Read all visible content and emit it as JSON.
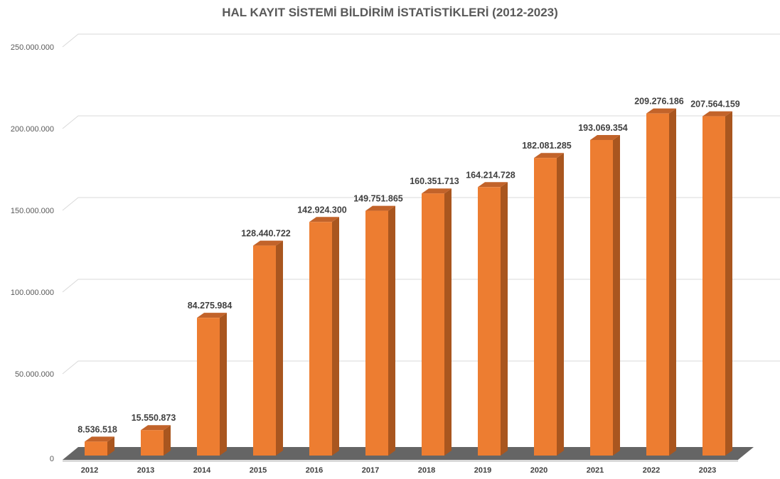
{
  "chart_data": {
    "type": "bar",
    "title": "HAL KAYIT SİSTEMİ BİLDİRİM İSTATİSTİKLERİ (2012-2023)",
    "xlabel": "",
    "ylabel": "",
    "ylim": [
      0,
      250000000
    ],
    "y_ticks": [
      0,
      50000000,
      100000000,
      150000000,
      200000000,
      250000000
    ],
    "y_tick_labels": [
      "0",
      "50.000.000",
      "100.000.000",
      "150.000.000",
      "200.000.000",
      "250.000.000"
    ],
    "categories": [
      "2012",
      "2013",
      "2014",
      "2015",
      "2016",
      "2017",
      "2018",
      "2019",
      "2020",
      "2021",
      "2022",
      "2023"
    ],
    "values": [
      8536518,
      15550873,
      84275984,
      128440722,
      142924300,
      149751865,
      160351713,
      164214728,
      182081285,
      193069354,
      209276186,
      207564159
    ],
    "data_labels": [
      "8.536.518",
      "15.550.873",
      "84.275.984",
      "128.440.722",
      "142.924.300",
      "149.751.865",
      "160.351.713",
      "164.214.728",
      "182.081.285",
      "193.069.354",
      "209.276.186",
      "207.564.159"
    ],
    "grid": true,
    "legend": "none",
    "style": "3d-column",
    "colors": {
      "bar_front": "#ED7D31",
      "bar_side": "#A9561F",
      "bar_top": "#C2632A",
      "grid": "#D9D9D9",
      "text": "#595959"
    }
  }
}
